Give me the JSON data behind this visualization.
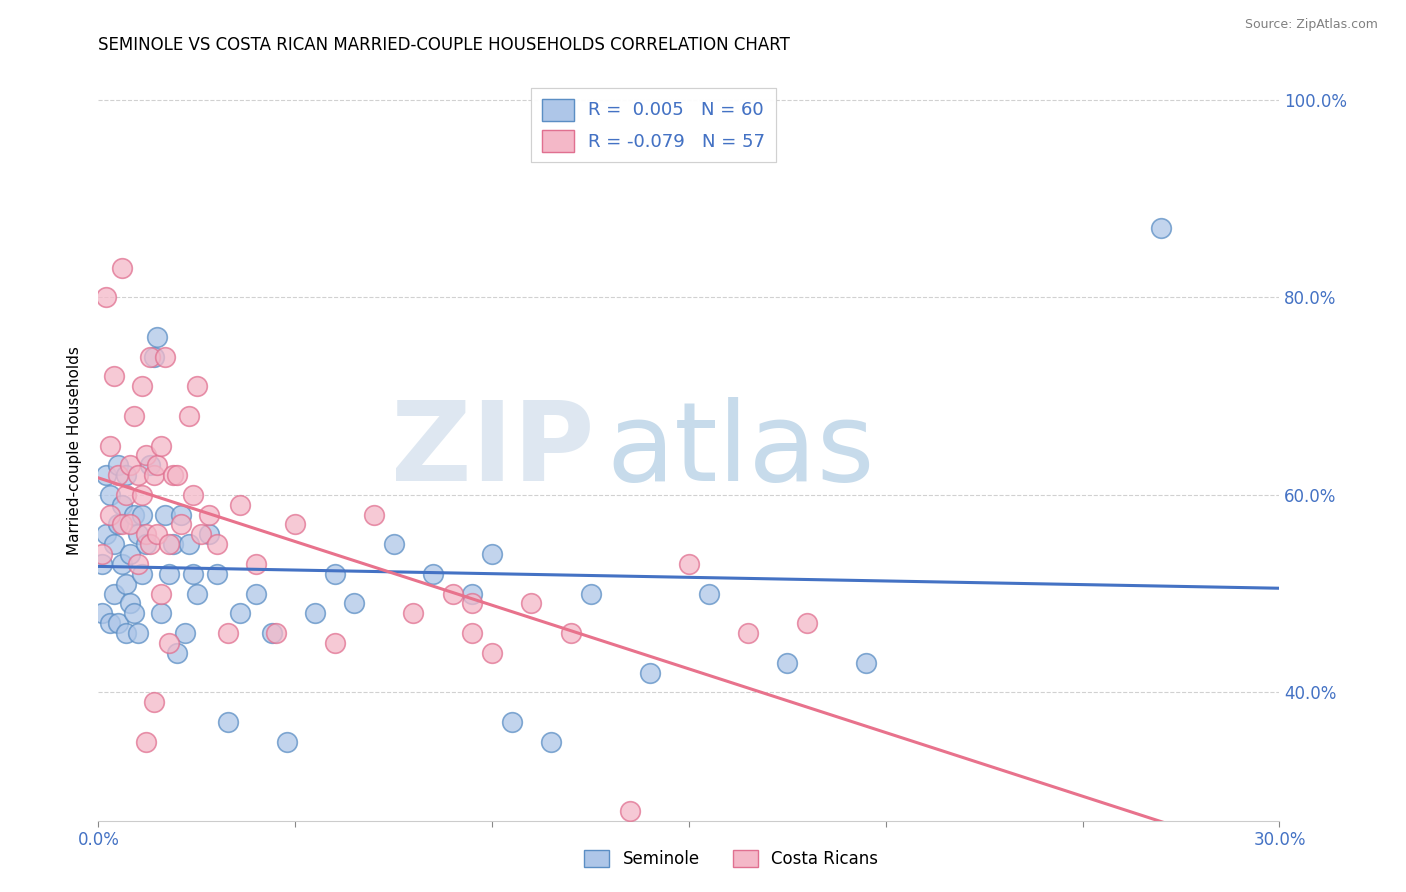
{
  "title": "SEMINOLE VS COSTA RICAN MARRIED-COUPLE HOUSEHOLDS CORRELATION CHART",
  "source": "Source: ZipAtlas.com",
  "ylabel": "Married-couple Households",
  "xlim": [
    0.0,
    0.3
  ],
  "ylim": [
    0.27,
    1.02
  ],
  "xticks": [
    0.0,
    0.05,
    0.1,
    0.15,
    0.2,
    0.25,
    0.3
  ],
  "xticklabels": [
    "0.0%",
    "",
    "",
    "",
    "",
    "",
    "30.0%"
  ],
  "yticks": [
    0.4,
    0.6,
    0.8,
    1.0
  ],
  "yticklabels": [
    "40.0%",
    "60.0%",
    "80.0%",
    "100.0%"
  ],
  "seminole_color": "#aec6e8",
  "costa_rican_color": "#f4b8c8",
  "seminole_edge_color": "#5b8ec4",
  "costa_rican_edge_color": "#e07090",
  "seminole_line_color": "#4472c4",
  "costa_rican_line_color": "#e8728c",
  "legend_R_seminole": "R =  0.005",
  "legend_N_seminole": "N = 60",
  "legend_R_costa": "R = -0.079",
  "legend_N_costa": "N = 57",
  "seminole_x": [
    0.001,
    0.001,
    0.002,
    0.002,
    0.003,
    0.003,
    0.004,
    0.004,
    0.005,
    0.005,
    0.005,
    0.006,
    0.006,
    0.007,
    0.007,
    0.007,
    0.008,
    0.008,
    0.009,
    0.009,
    0.01,
    0.01,
    0.011,
    0.011,
    0.012,
    0.013,
    0.014,
    0.015,
    0.016,
    0.017,
    0.018,
    0.019,
    0.02,
    0.021,
    0.022,
    0.023,
    0.024,
    0.025,
    0.028,
    0.03,
    0.033,
    0.036,
    0.04,
    0.044,
    0.048,
    0.055,
    0.06,
    0.065,
    0.075,
    0.085,
    0.095,
    0.105,
    0.115,
    0.125,
    0.14,
    0.155,
    0.175,
    0.195,
    0.1,
    0.27
  ],
  "seminole_y": [
    0.53,
    0.48,
    0.62,
    0.56,
    0.6,
    0.47,
    0.55,
    0.5,
    0.63,
    0.57,
    0.47,
    0.53,
    0.59,
    0.62,
    0.51,
    0.46,
    0.49,
    0.54,
    0.58,
    0.48,
    0.56,
    0.46,
    0.52,
    0.58,
    0.55,
    0.63,
    0.74,
    0.76,
    0.48,
    0.58,
    0.52,
    0.55,
    0.44,
    0.58,
    0.46,
    0.55,
    0.52,
    0.5,
    0.56,
    0.52,
    0.37,
    0.48,
    0.5,
    0.46,
    0.35,
    0.48,
    0.52,
    0.49,
    0.55,
    0.52,
    0.5,
    0.37,
    0.35,
    0.5,
    0.42,
    0.5,
    0.43,
    0.43,
    0.54,
    0.87
  ],
  "costa_rican_x": [
    0.001,
    0.002,
    0.003,
    0.003,
    0.004,
    0.005,
    0.006,
    0.006,
    0.007,
    0.008,
    0.008,
    0.009,
    0.01,
    0.01,
    0.011,
    0.011,
    0.012,
    0.012,
    0.013,
    0.013,
    0.014,
    0.015,
    0.015,
    0.016,
    0.017,
    0.018,
    0.019,
    0.02,
    0.021,
    0.023,
    0.024,
    0.025,
    0.026,
    0.028,
    0.03,
    0.033,
    0.036,
    0.04,
    0.045,
    0.05,
    0.06,
    0.07,
    0.08,
    0.09,
    0.1,
    0.11,
    0.12,
    0.135,
    0.15,
    0.165,
    0.18,
    0.095,
    0.012,
    0.014,
    0.016,
    0.018,
    0.095
  ],
  "costa_rican_y": [
    0.54,
    0.8,
    0.58,
    0.65,
    0.72,
    0.62,
    0.57,
    0.83,
    0.6,
    0.57,
    0.63,
    0.68,
    0.53,
    0.62,
    0.6,
    0.71,
    0.56,
    0.64,
    0.74,
    0.55,
    0.62,
    0.56,
    0.63,
    0.65,
    0.74,
    0.55,
    0.62,
    0.62,
    0.57,
    0.68,
    0.6,
    0.71,
    0.56,
    0.58,
    0.55,
    0.46,
    0.59,
    0.53,
    0.46,
    0.57,
    0.45,
    0.58,
    0.48,
    0.5,
    0.44,
    0.49,
    0.46,
    0.28,
    0.53,
    0.46,
    0.47,
    0.49,
    0.35,
    0.39,
    0.5,
    0.45,
    0.46
  ],
  "watermark_zip": "ZIP",
  "watermark_atlas": "atlas",
  "background_color": "#ffffff",
  "grid_color": "#cccccc"
}
